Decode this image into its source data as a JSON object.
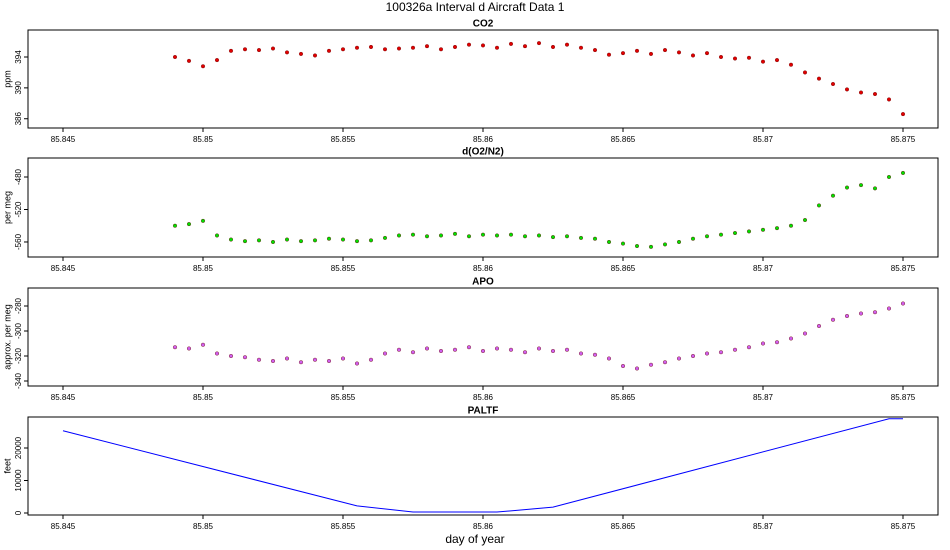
{
  "title": "100326a   Interval d Aircraft Data 1",
  "chart_data": [
    {
      "type": "scatter",
      "title": "CO2",
      "y_label": "ppm",
      "color": "#e00000",
      "x": [
        85.849,
        85.8495,
        85.85,
        85.8505,
        85.851,
        85.8515,
        85.852,
        85.8525,
        85.853,
        85.8535,
        85.854,
        85.8545,
        85.855,
        85.8555,
        85.856,
        85.8565,
        85.857,
        85.8575,
        85.858,
        85.8585,
        85.859,
        85.8595,
        85.86,
        85.8605,
        85.861,
        85.8615,
        85.862,
        85.8625,
        85.863,
        85.8635,
        85.864,
        85.8645,
        85.865,
        85.8655,
        85.866,
        85.8665,
        85.867,
        85.8675,
        85.868,
        85.8685,
        85.869,
        85.8695,
        85.87,
        85.8705,
        85.871,
        85.8715,
        85.872,
        85.8725,
        85.873,
        85.8735,
        85.874,
        85.8745,
        85.875
      ],
      "values": [
        394.0,
        393.5,
        392.8,
        393.6,
        394.8,
        395.0,
        394.9,
        395.1,
        394.6,
        394.4,
        394.2,
        394.8,
        395.0,
        395.2,
        395.3,
        395.0,
        395.1,
        395.2,
        395.4,
        395.0,
        395.3,
        395.6,
        395.5,
        395.2,
        395.7,
        395.4,
        395.8,
        395.3,
        395.6,
        395.2,
        394.9,
        394.3,
        394.5,
        394.8,
        394.4,
        394.9,
        394.6,
        394.2,
        394.5,
        394.0,
        393.8,
        393.9,
        393.4,
        393.6,
        393.0,
        392.0,
        391.2,
        390.5,
        389.8,
        389.4,
        389.2,
        388.5,
        386.6
      ],
      "xlim": [
        85.84375,
        85.87625
      ],
      "xticks": [
        85.845,
        85.85,
        85.855,
        85.86,
        85.865,
        85.87,
        85.875
      ],
      "ylim": [
        384.8,
        397.5
      ],
      "yticks": [
        386,
        390,
        394
      ]
    },
    {
      "type": "scatter",
      "title": "d(O2/N2)",
      "y_label": "per meg",
      "color": "#00e000",
      "x": [
        85.849,
        85.8495,
        85.85,
        85.8505,
        85.851,
        85.8515,
        85.852,
        85.8525,
        85.853,
        85.8535,
        85.854,
        85.8545,
        85.855,
        85.8555,
        85.856,
        85.8565,
        85.857,
        85.8575,
        85.858,
        85.8585,
        85.859,
        85.8595,
        85.86,
        85.8605,
        85.861,
        85.8615,
        85.862,
        85.8625,
        85.863,
        85.8635,
        85.864,
        85.8645,
        85.865,
        85.8655,
        85.866,
        85.8665,
        85.867,
        85.8675,
        85.868,
        85.8685,
        85.869,
        85.8695,
        85.87,
        85.8705,
        85.871,
        85.8715,
        85.872,
        85.8725,
        85.873,
        85.8735,
        85.874,
        85.8745,
        85.875
      ],
      "values": [
        -540,
        -538,
        -534,
        -552,
        -557,
        -559,
        -558,
        -560,
        -557,
        -559,
        -558,
        -556,
        -557,
        -559,
        -558,
        -555,
        -552,
        -551,
        -553,
        -552,
        -550,
        -553,
        -551,
        -552,
        -551,
        -553,
        -552,
        -554,
        -553,
        -555,
        -556,
        -560,
        -562,
        -565,
        -566,
        -563,
        -560,
        -556,
        -553,
        -551,
        -549,
        -547,
        -545,
        -543,
        -540,
        -533,
        -515,
        -503,
        -493,
        -490,
        -494,
        -480,
        -475
      ],
      "xlim": [
        85.84375,
        85.87625
      ],
      "xticks": [
        85.845,
        85.85,
        85.855,
        85.86,
        85.865,
        85.87,
        85.875
      ],
      "ylim": [
        -578.5,
        -456.6
      ],
      "yticks": [
        -560,
        -520,
        -480
      ]
    },
    {
      "type": "scatter",
      "title": "APO",
      "y_label": "approx. per meg",
      "color": "#d060f0",
      "x": [
        85.849,
        85.8495,
        85.85,
        85.8505,
        85.851,
        85.8515,
        85.852,
        85.8525,
        85.853,
        85.8535,
        85.854,
        85.8545,
        85.855,
        85.8555,
        85.856,
        85.8565,
        85.857,
        85.8575,
        85.858,
        85.8585,
        85.859,
        85.8595,
        85.86,
        85.8605,
        85.861,
        85.8615,
        85.862,
        85.8625,
        85.863,
        85.8635,
        85.864,
        85.8645,
        85.865,
        85.8655,
        85.866,
        85.8665,
        85.867,
        85.8675,
        85.868,
        85.8685,
        85.869,
        85.8695,
        85.87,
        85.8705,
        85.871,
        85.8715,
        85.872,
        85.8725,
        85.873,
        85.8735,
        85.874,
        85.8745,
        85.875
      ],
      "values": [
        -313,
        -314,
        -311,
        -318,
        -320,
        -321,
        -323,
        -324,
        -322,
        -325,
        -323,
        -324,
        -322,
        -326,
        -323,
        -318,
        -315,
        -317,
        -314,
        -316,
        -315,
        -313,
        -316,
        -314,
        -315,
        -317,
        -314,
        -316,
        -315,
        -318,
        -319,
        -322,
        -328,
        -330,
        -327,
        -325,
        -322,
        -320,
        -318,
        -317,
        -315,
        -313,
        -310,
        -309,
        -306,
        -302,
        -296,
        -291,
        -288,
        -286,
        -285,
        -282,
        -278
      ],
      "xlim": [
        85.84375,
        85.87625
      ],
      "xticks": [
        85.845,
        85.85,
        85.855,
        85.86,
        85.865,
        85.87,
        85.875
      ],
      "ylim": [
        -344,
        -265.6
      ],
      "yticks": [
        -340,
        -320,
        -300,
        -280
      ]
    },
    {
      "type": "line",
      "title": "PALTF",
      "y_label": "feet",
      "x_label": "day of year",
      "color": "#0000ff",
      "x": [
        85.845,
        85.8555,
        85.8575,
        85.8605,
        85.8625,
        85.8745,
        85.875
      ],
      "values": [
        25300,
        2200,
        300,
        300,
        1800,
        29000,
        29000
      ],
      "xlim": [
        85.84375,
        85.87625
      ],
      "xticks": [
        85.845,
        85.85,
        85.855,
        85.86,
        85.865,
        85.87,
        85.875
      ],
      "ylim": [
        -615,
        29538
      ],
      "yticks": [
        0,
        10000,
        20000
      ]
    }
  ]
}
